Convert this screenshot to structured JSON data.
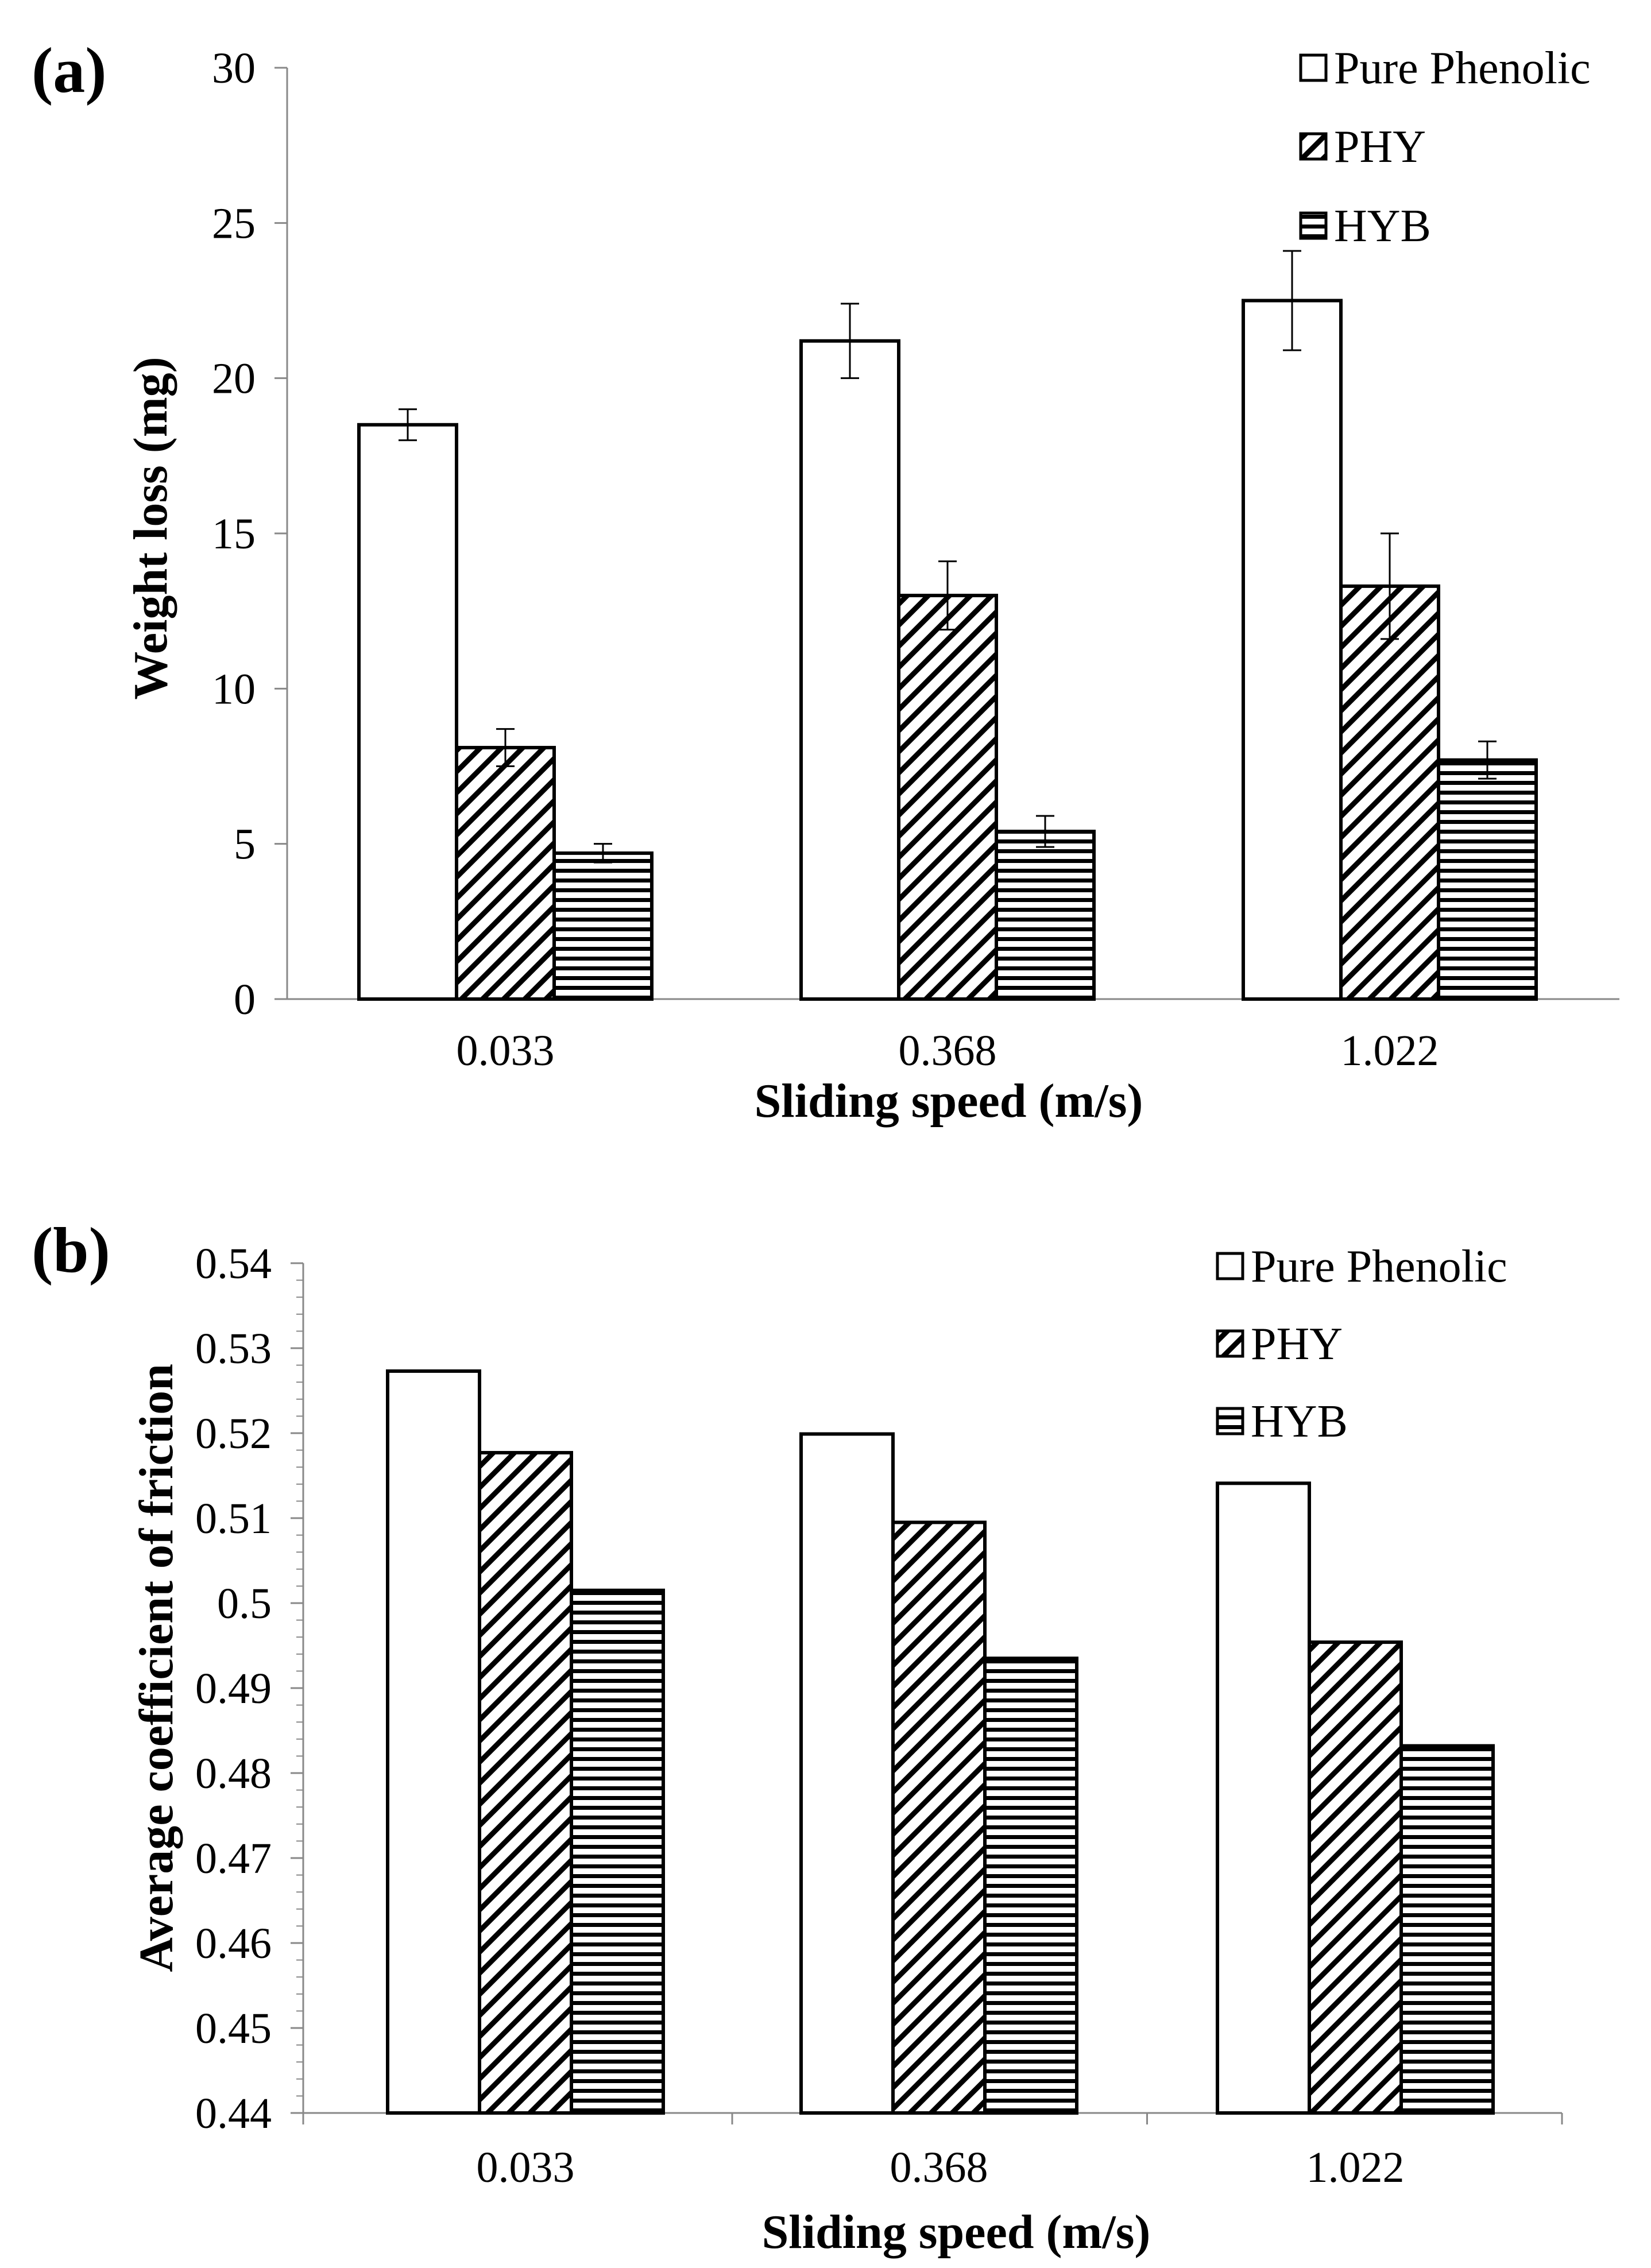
{
  "chart_data": [
    {
      "panel_label": "(a)",
      "type": "bar",
      "categories": [
        "0.033",
        "0.368",
        "1.022"
      ],
      "series": [
        {
          "name": "Pure Phenolic",
          "pattern": "none",
          "values": [
            18.5,
            21.2,
            22.5
          ],
          "errors": [
            0.5,
            1.2,
            1.6
          ]
        },
        {
          "name": "PHY",
          "pattern": "diagonal",
          "values": [
            8.1,
            13.0,
            13.3
          ],
          "errors": [
            0.6,
            1.1,
            1.7
          ]
        },
        {
          "name": "HYB",
          "pattern": "horizontal",
          "values": [
            4.7,
            5.4,
            7.7
          ],
          "errors": [
            0.3,
            0.5,
            0.6
          ]
        }
      ],
      "xlabel": "Sliding speed (m/s)",
      "ylabel": "Weight loss (mg)",
      "ylim": [
        0,
        30
      ],
      "yticks": [
        "0",
        "5",
        "10",
        "15",
        "20",
        "25",
        "30"
      ],
      "legend": "top-right"
    },
    {
      "panel_label": "(b)",
      "type": "bar",
      "categories": [
        "0.033",
        "0.368",
        "1.022"
      ],
      "series": [
        {
          "name": "Pure Phenolic",
          "pattern": "none",
          "values": [
            0.5273,
            0.5199,
            0.5141
          ]
        },
        {
          "name": "PHY",
          "pattern": "diagonal",
          "values": [
            0.5177,
            0.5095,
            0.4954
          ]
        },
        {
          "name": "HYB",
          "pattern": "horizontal",
          "values": [
            0.5015,
            0.4935,
            0.4832
          ]
        }
      ],
      "xlabel": "Sliding speed (m/s)",
      "ylabel": "Average coefficient of friction",
      "ylim": [
        0.44,
        0.54
      ],
      "yticks": [
        "0.44",
        "0.45",
        "0.46",
        "0.47",
        "0.48",
        "0.49",
        "0.5",
        "0.51",
        "0.52",
        "0.53",
        "0.54"
      ],
      "legend": "top-right"
    }
  ]
}
